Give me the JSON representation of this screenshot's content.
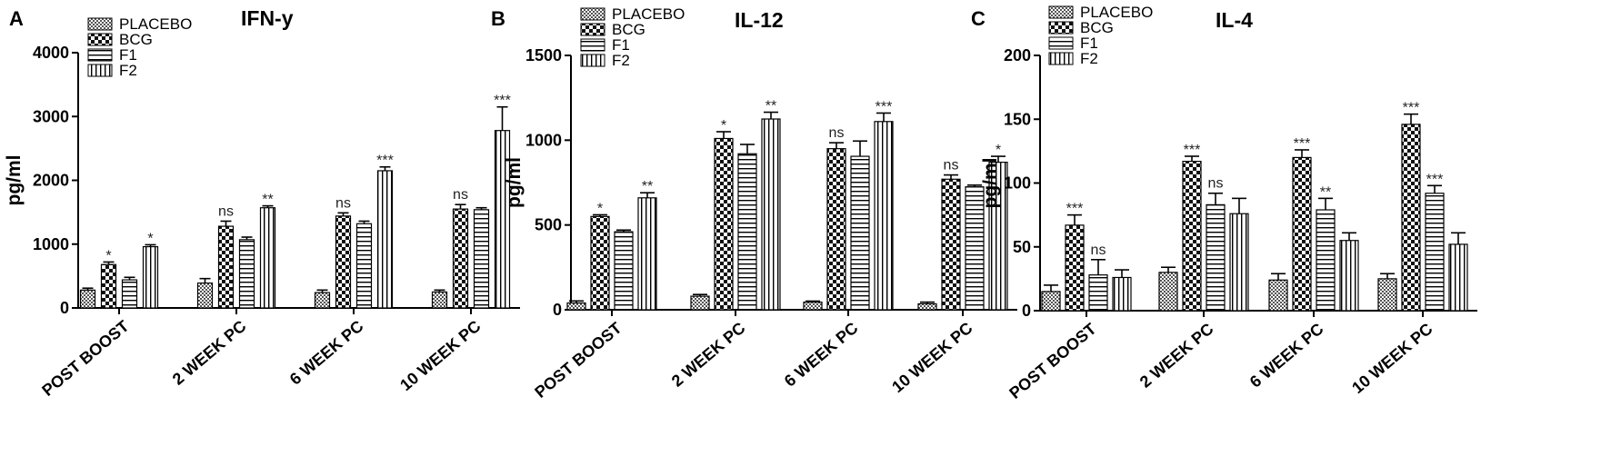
{
  "colors": {
    "ink": "#000000",
    "background": "#ffffff"
  },
  "chart_data": [
    {
      "type": "bar",
      "panel_letter": "A",
      "title": "IFN-y",
      "ylabel": "pg/ml",
      "xlabel": "",
      "ylim": [
        0,
        4000
      ],
      "yticks": [
        0,
        1000,
        2000,
        3000,
        4000
      ],
      "categories": [
        "POST BOOST",
        "2 WEEK PC",
        "6 WEEK PC",
        "10 WEEK PC"
      ],
      "grid": false,
      "legend": "top-left",
      "series": [
        {
          "name": "PLACEBO",
          "pattern": "dense",
          "values": [
            280,
            390,
            240,
            250
          ],
          "errors": [
            30,
            70,
            40,
            30
          ]
        },
        {
          "name": "BCG",
          "pattern": "check",
          "values": [
            680,
            1280,
            1440,
            1550
          ],
          "errors": [
            40,
            80,
            50,
            70
          ]
        },
        {
          "name": "F1",
          "pattern": "hlines",
          "values": [
            440,
            1070,
            1320,
            1540
          ],
          "errors": [
            40,
            40,
            40,
            30
          ]
        },
        {
          "name": "F2",
          "pattern": "vlines",
          "values": [
            960,
            1570,
            2150,
            2780
          ],
          "errors": [
            30,
            30,
            60,
            370
          ]
        }
      ],
      "annotations": [
        [
          null,
          null,
          null,
          null
        ],
        [
          "*",
          "ns",
          "ns",
          "ns"
        ],
        [
          null,
          null,
          null,
          null
        ],
        [
          "*",
          "**",
          "***",
          "***"
        ]
      ]
    },
    {
      "type": "bar",
      "panel_letter": "B",
      "title": "IL-12",
      "ylabel": "pg/ml",
      "xlabel": "",
      "ylim": [
        0,
        1500
      ],
      "yticks": [
        0,
        500,
        1000,
        1500
      ],
      "categories": [
        "POST BOOST",
        "2 WEEK PC",
        "6 WEEK PC",
        "10 WEEK PC"
      ],
      "grid": false,
      "legend": "top-left",
      "series": [
        {
          "name": "PLACEBO",
          "pattern": "dense",
          "values": [
            40,
            80,
            45,
            35
          ],
          "errors": [
            12,
            10,
            6,
            10
          ]
        },
        {
          "name": "BCG",
          "pattern": "check",
          "values": [
            550,
            1010,
            950,
            770
          ],
          "errors": [
            10,
            40,
            35,
            25
          ]
        },
        {
          "name": "F1",
          "pattern": "hlines",
          "values": [
            460,
            920,
            905,
            725
          ],
          "errors": [
            10,
            55,
            90,
            10
          ]
        },
        {
          "name": "F2",
          "pattern": "vlines",
          "values": [
            660,
            1125,
            1110,
            870
          ],
          "errors": [
            30,
            40,
            50,
            35
          ]
        }
      ],
      "annotations": [
        [
          null,
          null,
          null,
          null
        ],
        [
          "*",
          "*",
          "ns",
          "ns"
        ],
        [
          null,
          null,
          null,
          null
        ],
        [
          "**",
          "**",
          "***",
          "*"
        ]
      ]
    },
    {
      "type": "bar",
      "panel_letter": "C",
      "title": "IL-4",
      "ylabel": "pg/ml",
      "xlabel": "",
      "ylim": [
        0,
        200
      ],
      "yticks": [
        0,
        50,
        100,
        150,
        200
      ],
      "categories": [
        "POST BOOST",
        "2 WEEK PC",
        "6 WEEK PC",
        "10 WEEK PC"
      ],
      "grid": false,
      "legend": "top-left",
      "series": [
        {
          "name": "PLACEBO",
          "pattern": "dense",
          "values": [
            15,
            30,
            24,
            25
          ],
          "errors": [
            5,
            4,
            5,
            4
          ]
        },
        {
          "name": "BCG",
          "pattern": "check",
          "values": [
            67,
            117,
            120,
            146
          ],
          "errors": [
            8,
            4,
            6,
            8
          ]
        },
        {
          "name": "F1",
          "pattern": "hlines",
          "values": [
            28,
            83,
            79,
            92
          ],
          "errors": [
            12,
            9,
            9,
            6
          ]
        },
        {
          "name": "F2",
          "pattern": "vlines",
          "values": [
            26,
            76,
            55,
            52
          ],
          "errors": [
            6,
            12,
            6,
            9
          ]
        }
      ],
      "annotations": [
        [
          null,
          null,
          null,
          null
        ],
        [
          "***",
          "***",
          "***",
          "***"
        ],
        [
          "ns",
          "ns",
          "**",
          "***"
        ],
        [
          null,
          null,
          null,
          null
        ]
      ]
    }
  ]
}
